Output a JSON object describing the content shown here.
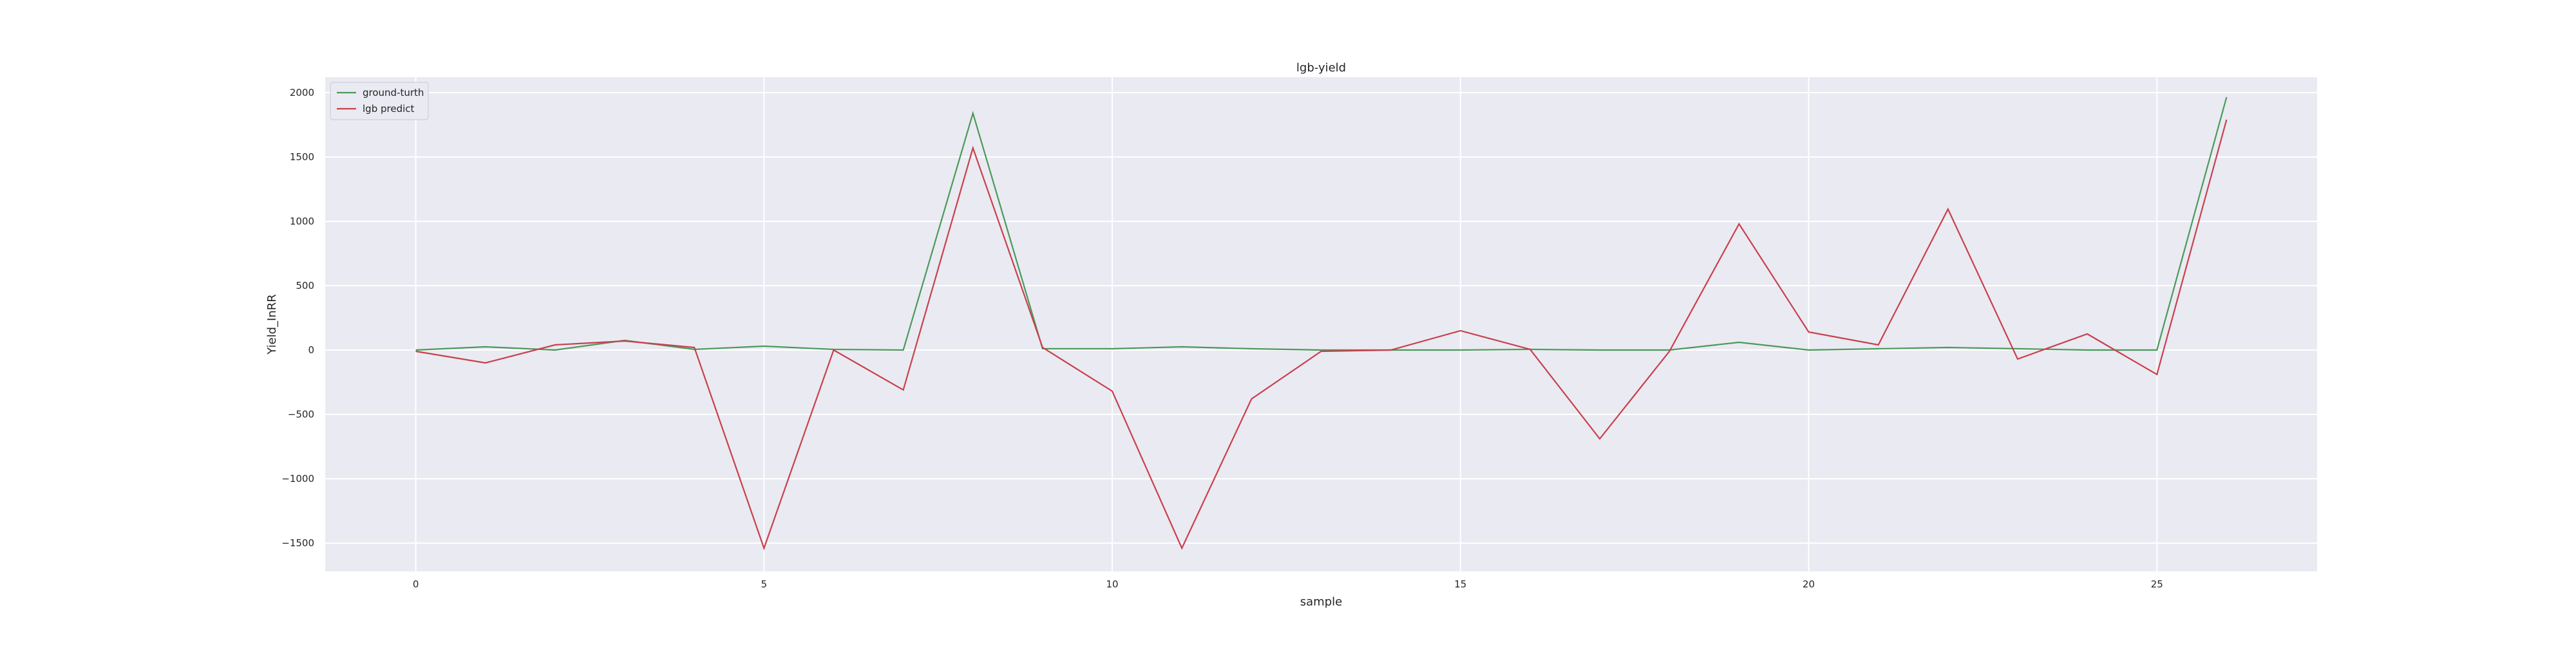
{
  "chart_data": {
    "type": "line",
    "title": "lgb-yield",
    "xlabel": "sample",
    "ylabel": "Yield_InRR",
    "x": [
      0,
      1,
      2,
      3,
      4,
      5,
      6,
      7,
      8,
      9,
      10,
      11,
      12,
      13,
      14,
      15,
      16,
      17,
      18,
      19,
      20,
      21,
      22,
      23,
      24,
      25,
      26
    ],
    "xlim": [
      -1.3,
      27.3
    ],
    "ylim": [
      -1720,
      2120
    ],
    "xticks": [
      0,
      5,
      10,
      15,
      20,
      25
    ],
    "yticks": [
      -1500,
      -1000,
      -500,
      0,
      500,
      1000,
      1500,
      2000
    ],
    "ytick_labels": [
      "−1500",
      "−1000",
      "−500",
      "0",
      "500",
      "1000",
      "1500",
      "2000"
    ],
    "grid": true,
    "legend_position": "top-left",
    "series": [
      {
        "name": "ground-turth",
        "color": "#4a9a5a",
        "values": [
          0,
          25,
          0,
          75,
          5,
          30,
          5,
          0,
          1840,
          10,
          10,
          25,
          10,
          0,
          0,
          0,
          5,
          0,
          0,
          60,
          0,
          10,
          20,
          10,
          0,
          0,
          1965
        ]
      },
      {
        "name": "lgb predict",
        "color": "#c8404c",
        "values": [
          -10,
          -100,
          40,
          70,
          20,
          -1540,
          0,
          -310,
          1570,
          20,
          -320,
          -1540,
          -380,
          -10,
          0,
          150,
          5,
          -690,
          -10,
          980,
          140,
          40,
          1095,
          -70,
          125,
          -190,
          1790
        ]
      }
    ],
    "background_color": "#eaeaf2",
    "grid_color": "#ffffff"
  }
}
